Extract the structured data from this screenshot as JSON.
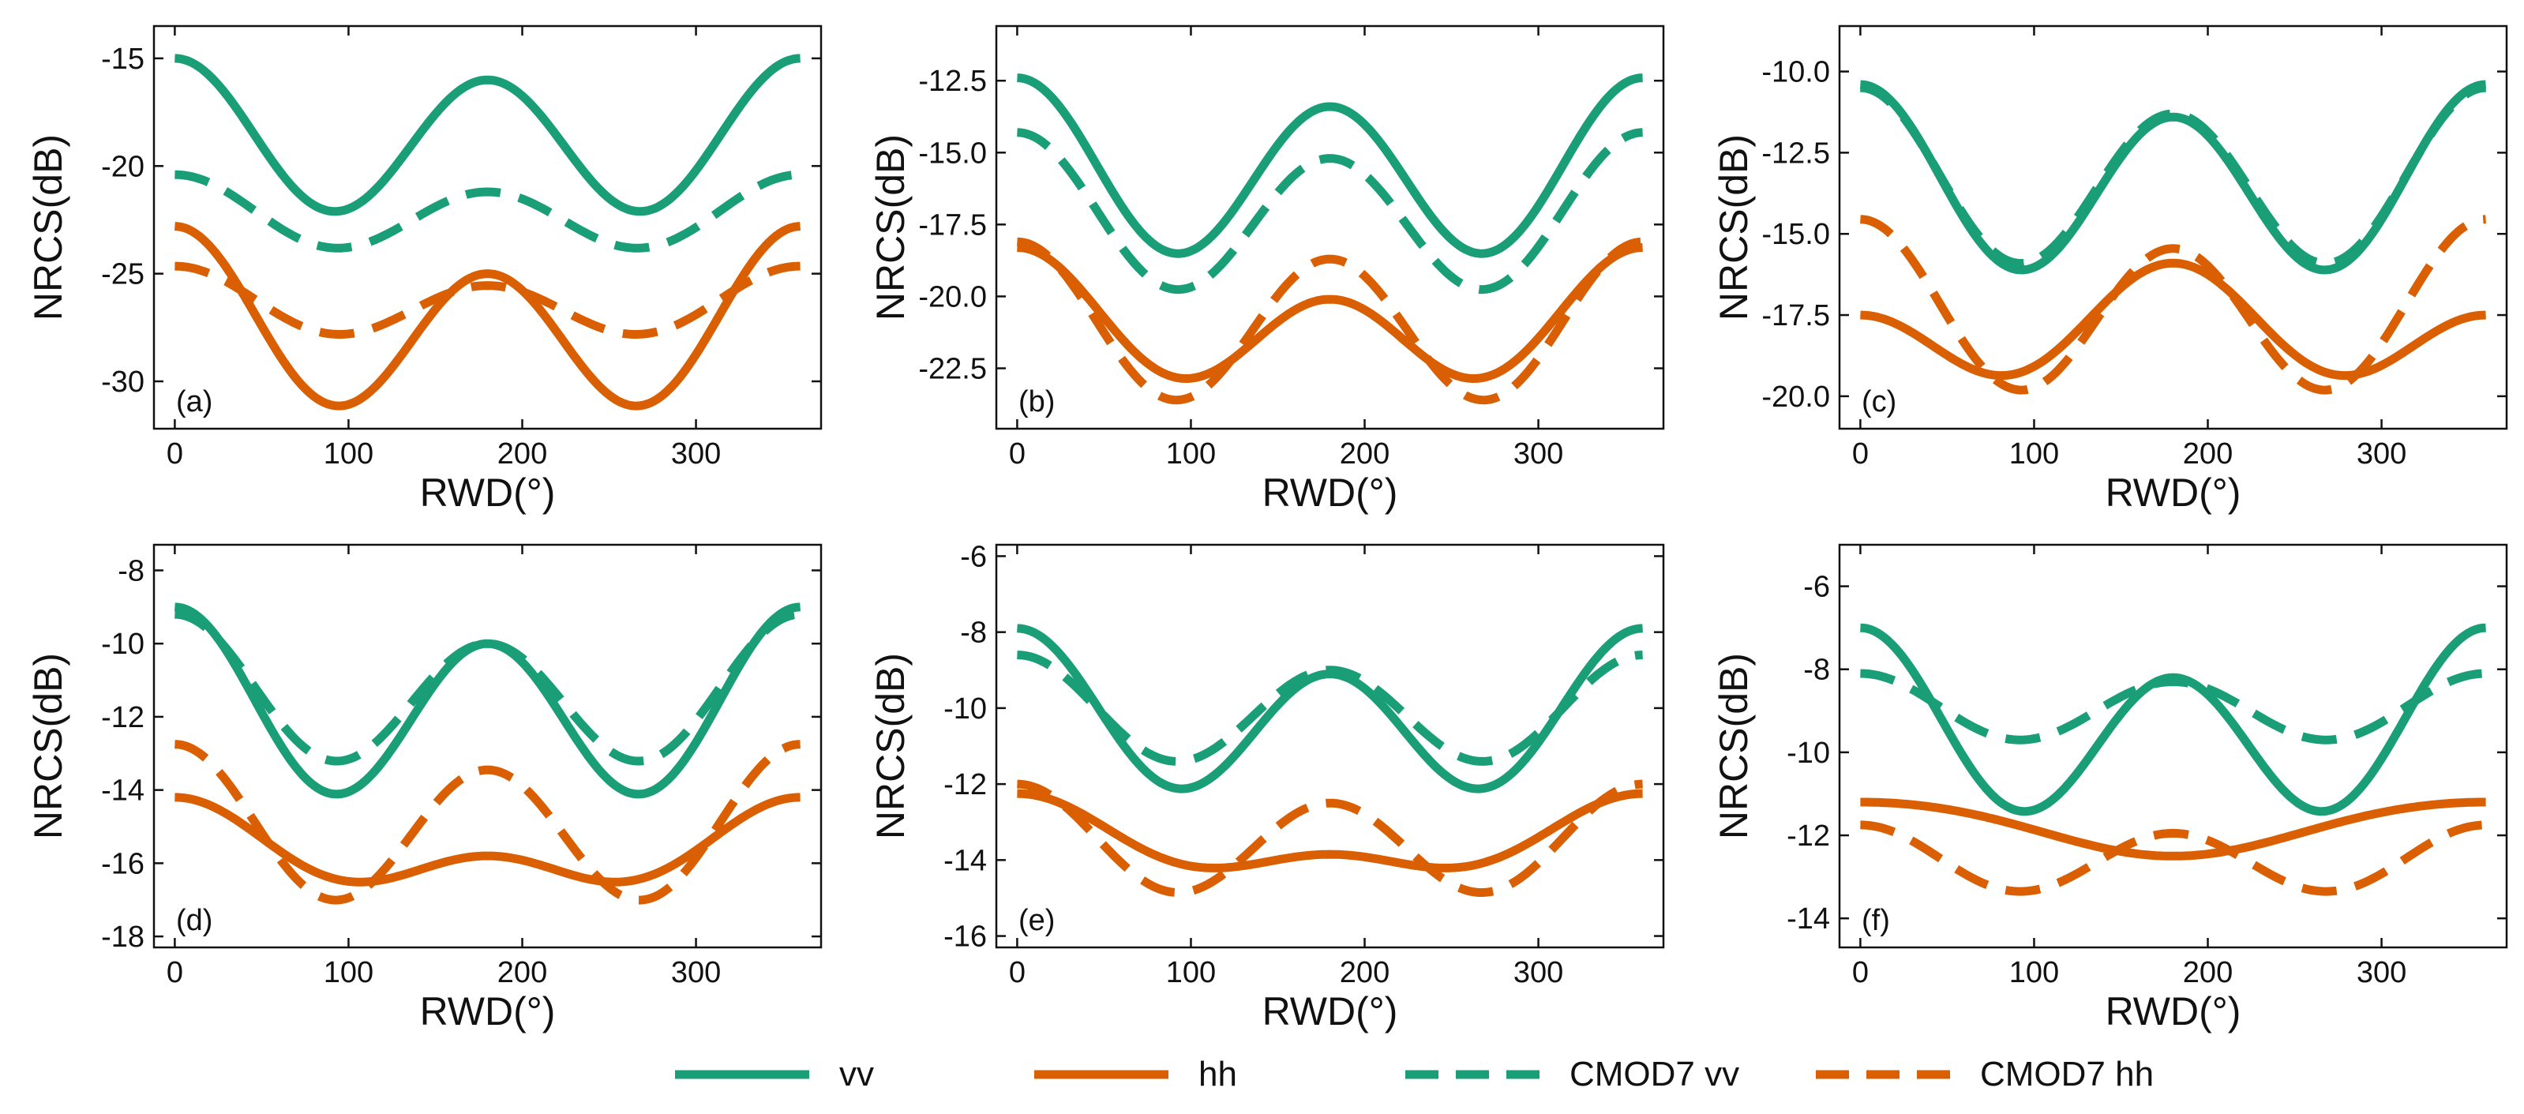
{
  "colors": {
    "vv": "#1a9e77",
    "hh": "#d95f02",
    "axis": "#111111"
  },
  "legend": [
    {
      "label": "vv",
      "color": "#1a9e77",
      "style": "solid"
    },
    {
      "label": "hh",
      "color": "#d95f02",
      "style": "solid"
    },
    {
      "label": "CMOD7 vv",
      "color": "#1a9e77",
      "style": "dashed"
    },
    {
      "label": "CMOD7 hh",
      "color": "#d95f02",
      "style": "dashed"
    }
  ],
  "chart_data": [
    {
      "type": "line",
      "panel_label": "(a)",
      "xlabel": "RWD(°)",
      "ylabel": "NRCS(dB)",
      "xlim": [
        -12,
        372
      ],
      "ylim": [
        -32.2,
        -13.5
      ],
      "xticks": [
        0,
        100,
        200,
        300
      ],
      "xtick_labels": [
        "0",
        "100",
        "200",
        "300"
      ],
      "yticks": [
        -15,
        -20,
        -25,
        -30
      ],
      "ytick_labels": [
        "-15",
        "-20",
        "-25",
        "-30"
      ],
      "series": [
        {
          "name": "vv",
          "a0": -18.8,
          "a1": 0.5,
          "a2": 3.3
        },
        {
          "name": "hh",
          "a0": -27.5,
          "a1": 1.1,
          "a2": 3.6
        },
        {
          "name": "CMOD7 vv",
          "a0": -22.3,
          "a1": 0.4,
          "a2": 1.5
        },
        {
          "name": "CMOD7 hh",
          "a0": -26.45,
          "a1": 0.45,
          "a2": 1.35
        }
      ]
    },
    {
      "type": "line",
      "panel_label": "(b)",
      "xlabel": "RWD(°)",
      "ylabel": "NRCS(dB)",
      "xlim": [
        -12,
        372
      ],
      "ylim": [
        -24.6,
        -10.6
      ],
      "xticks": [
        0,
        100,
        200,
        300
      ],
      "xtick_labels": [
        "0",
        "100",
        "200",
        "300"
      ],
      "yticks": [
        -12.5,
        -15.0,
        -17.5,
        -20.0,
        -22.5
      ],
      "ytick_labels": [
        "-12.5",
        "-15.0",
        "-17.5",
        "-20.0",
        "-22.5"
      ],
      "series": [
        {
          "name": "vv",
          "a0": -15.7,
          "a1": 0.5,
          "a2": 2.8
        },
        {
          "name": "hh",
          "a0": -21.0,
          "a1": 0.9,
          "a2": 1.8
        },
        {
          "name": "CMOD7 vv",
          "a0": -17.25,
          "a1": 0.45,
          "a2": 2.5
        },
        {
          "name": "CMOD7 hh",
          "a0": -21.0,
          "a1": 0.3,
          "a2": 2.6
        }
      ]
    },
    {
      "type": "line",
      "panel_label": "(c)",
      "xlabel": "RWD(°)",
      "ylabel": "NRCS(dB)",
      "xlim": [
        -12,
        372
      ],
      "ylim": [
        -21.0,
        -8.6
      ],
      "xticks": [
        0,
        100,
        200,
        300
      ],
      "xtick_labels": [
        "0",
        "100",
        "200",
        "300"
      ],
      "yticks": [
        -10.0,
        -12.5,
        -15.0,
        -17.5,
        -20.0
      ],
      "ytick_labels": [
        "-10.0",
        "-12.5",
        "-15.0",
        "-17.5",
        "-20.0"
      ],
      "series": [
        {
          "name": "vv",
          "a0": -13.5,
          "a1": 0.5,
          "a2": 2.6
        },
        {
          "name": "hh",
          "a0": -18.0,
          "a1": -0.8,
          "a2": 1.3
        },
        {
          "name": "CMOD7 vv",
          "a0": -13.4,
          "a1": 0.4,
          "a2": 2.5
        },
        {
          "name": "CMOD7 hh",
          "a0": -17.4,
          "a1": 0.45,
          "a2": 2.4
        }
      ]
    },
    {
      "type": "line",
      "panel_label": "(d)",
      "xlabel": "RWD(°)",
      "ylabel": "NRCS(dB)",
      "xlim": [
        -12,
        372
      ],
      "ylim": [
        -18.3,
        -7.3
      ],
      "xticks": [
        0,
        100,
        200,
        300
      ],
      "xtick_labels": [
        "0",
        "100",
        "200",
        "300"
      ],
      "yticks": [
        -8,
        -10,
        -12,
        -14,
        -16,
        -18
      ],
      "ytick_labels": [
        "-8",
        "-10",
        "-12",
        "-14",
        "-16",
        "-18"
      ],
      "series": [
        {
          "name": "vv",
          "a0": -11.8,
          "a1": 0.5,
          "a2": 2.3
        },
        {
          "name": "hh",
          "a0": -15.7,
          "a1": 0.8,
          "a2": 0.7
        },
        {
          "name": "CMOD7 vv",
          "a0": -11.4,
          "a1": 0.4,
          "a2": 1.8
        },
        {
          "name": "CMOD7 hh",
          "a0": -15.05,
          "a1": 0.35,
          "a2": 1.95
        }
      ]
    },
    {
      "type": "line",
      "panel_label": "(e)",
      "xlabel": "RWD(°)",
      "ylabel": "NRCS(dB)",
      "xlim": [
        -12,
        372
      ],
      "ylim": [
        -16.3,
        -5.7
      ],
      "xticks": [
        0,
        100,
        200,
        300
      ],
      "xtick_labels": [
        "0",
        "100",
        "200",
        "300"
      ],
      "yticks": [
        -6,
        -8,
        -10,
        -12,
        -14,
        -16
      ],
      "ytick_labels": [
        "-6",
        "-8",
        "-10",
        "-12",
        "-14",
        "-16"
      ],
      "series": [
        {
          "name": "vv",
          "a0": -10.3,
          "a1": 0.6,
          "a2": 1.8
        },
        {
          "name": "hh",
          "a0": -13.55,
          "a1": 0.8,
          "a2": 0.5
        },
        {
          "name": "CMOD7 vv",
          "a0": -10.1,
          "a1": 0.2,
          "a2": 1.3
        },
        {
          "name": "CMOD7 hh",
          "a0": -13.55,
          "a1": 0.25,
          "a2": 1.3
        }
      ]
    },
    {
      "type": "line",
      "panel_label": "(f)",
      "xlabel": "RWD(°)",
      "ylabel": "NRCS(dB)",
      "xlim": [
        -12,
        372
      ],
      "ylim": [
        -14.7,
        -5.0
      ],
      "xticks": [
        0,
        100,
        200,
        300
      ],
      "xtick_labels": [
        "0",
        "100",
        "200",
        "300"
      ],
      "yticks": [
        -6,
        -8,
        -10,
        -12,
        -14
      ],
      "ytick_labels": [
        "-6",
        "-8",
        "-10",
        "-12",
        "-14"
      ],
      "series": [
        {
          "name": "vv",
          "a0": -9.5,
          "a1": 0.6,
          "a2": 1.9
        },
        {
          "name": "hh",
          "a0": -11.8,
          "a1": 0.65,
          "a2": -0.05
        },
        {
          "name": "CMOD7 vv",
          "a0": -8.95,
          "a1": 0.1,
          "a2": 0.75
        },
        {
          "name": "CMOD7 hh",
          "a0": -12.6,
          "a1": 0.1,
          "a2": 0.75
        }
      ]
    }
  ]
}
